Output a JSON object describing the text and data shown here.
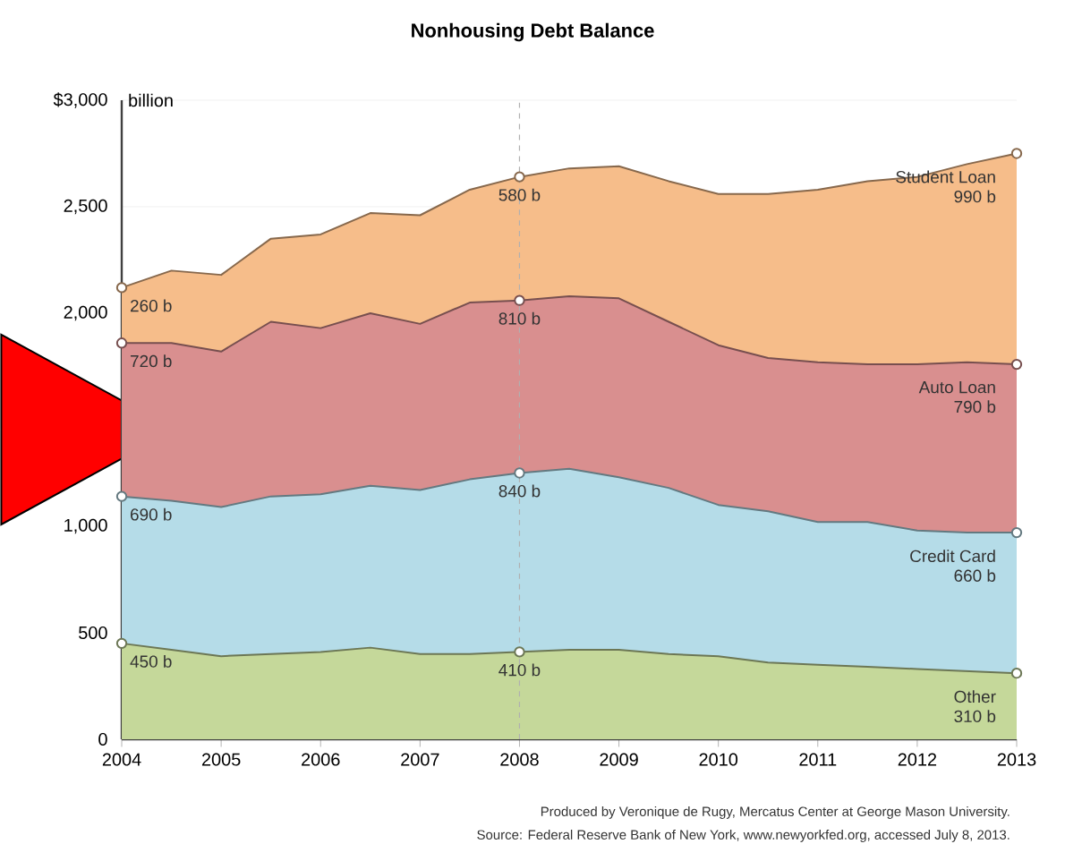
{
  "chart_data": {
    "type": "area",
    "stacked": true,
    "title": "Nonhousing Debt Balance",
    "ylabel": "billion",
    "x": [
      2004,
      2004.5,
      2005,
      2005.5,
      2006,
      2006.5,
      2007,
      2007.5,
      2008,
      2008.5,
      2009,
      2009.5,
      2010,
      2010.5,
      2011,
      2011.5,
      2012,
      2012.5,
      2013
    ],
    "xlim": [
      2004,
      2013
    ],
    "xticks": [
      2004,
      2005,
      2006,
      2007,
      2008,
      2009,
      2010,
      2011,
      2012,
      2013
    ],
    "ylim": [
      0,
      3000
    ],
    "yticks": [
      0,
      500,
      {
        "value": 1000,
        "label": "1,000"
      },
      {
        "value": 2000,
        "label": "2,000"
      },
      {
        "value": 2500,
        "label": "2,500"
      },
      {
        "value": 3000,
        "label": "$3,000"
      }
    ],
    "grid": "y",
    "series": [
      {
        "name": "Other",
        "color": "#c5d89a",
        "values": [
          450,
          420,
          390,
          400,
          410,
          430,
          400,
          400,
          410,
          420,
          420,
          400,
          390,
          360,
          350,
          340,
          330,
          320,
          310
        ],
        "value_labels": [
          "450 b",
          null,
          null,
          null,
          null,
          null,
          null,
          null,
          "410 b",
          null,
          null,
          null,
          null,
          null,
          null,
          null,
          null,
          null,
          "310 b"
        ]
      },
      {
        "name": "Credit Card",
        "color": "#b5dce8",
        "values": [
          690,
          700,
          700,
          740,
          740,
          760,
          770,
          820,
          840,
          850,
          810,
          780,
          710,
          710,
          670,
          680,
          650,
          650,
          660
        ],
        "value_labels": [
          "690 b",
          null,
          null,
          null,
          null,
          null,
          null,
          null,
          "840 b",
          null,
          null,
          null,
          null,
          null,
          null,
          null,
          null,
          null,
          "660 b"
        ]
      },
      {
        "name": "Auto Loan",
        "color": "#d98f8f",
        "values": [
          720,
          740,
          730,
          820,
          780,
          810,
          780,
          830,
          810,
          810,
          840,
          780,
          750,
          720,
          750,
          740,
          780,
          800,
          790
        ],
        "value_labels": [
          "720 b",
          null,
          null,
          null,
          null,
          null,
          null,
          null,
          "810 b",
          null,
          null,
          null,
          null,
          null,
          null,
          null,
          null,
          null,
          "790 b"
        ]
      },
      {
        "name": "Student Loan",
        "color": "#f6bd8a",
        "values": [
          260,
          340,
          360,
          390,
          440,
          470,
          510,
          530,
          580,
          600,
          620,
          660,
          710,
          770,
          810,
          860,
          880,
          930,
          990
        ],
        "value_labels": [
          "260 b",
          null,
          null,
          null,
          null,
          null,
          null,
          null,
          "580 b",
          null,
          null,
          null,
          null,
          null,
          null,
          null,
          null,
          null,
          "990 b"
        ]
      }
    ],
    "ref_lines": [
      {
        "axis": "x",
        "value": 2008,
        "color": "#b0b0b0",
        "line_style": "dashed"
      }
    ],
    "annotations": [
      "Produced by Veronique de Rugy, Mercatus Center at George Mason University.",
      "Source: Federal Reserve Bank of New York, www.newyorkfed.org, accessed July 8, 2013."
    ]
  }
}
